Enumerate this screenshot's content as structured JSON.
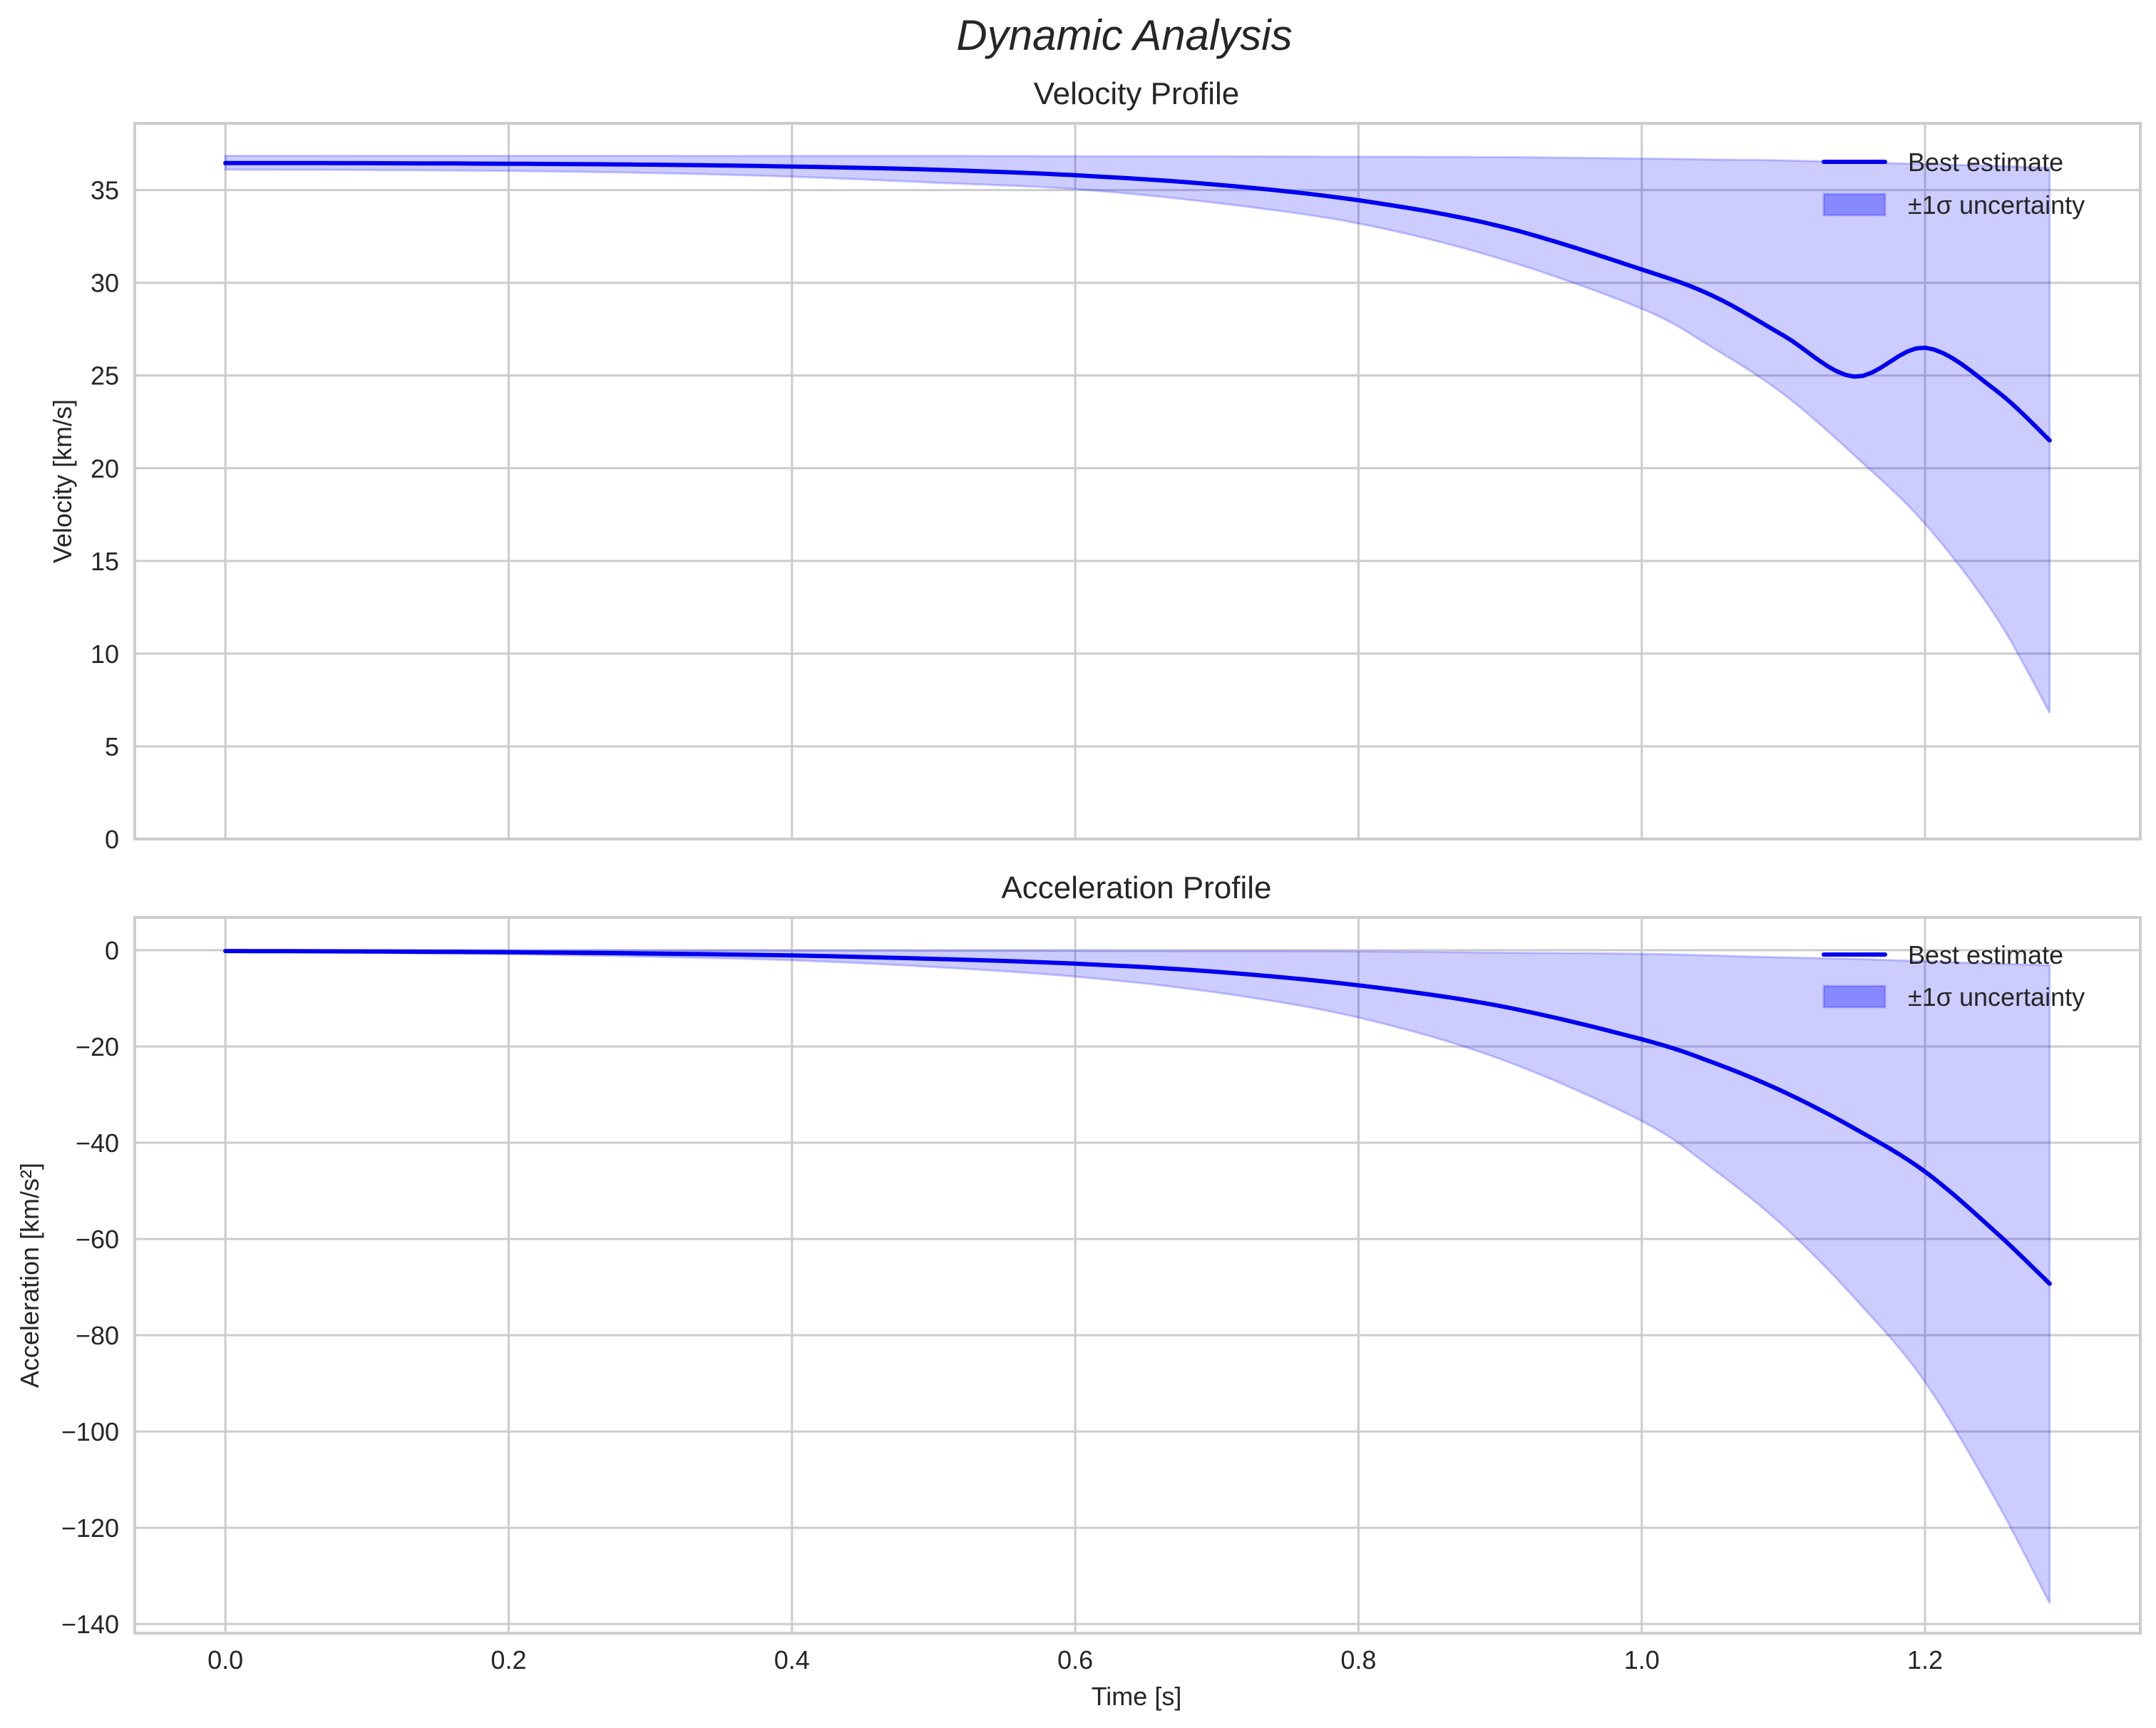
{
  "figure": {
    "suptitle": "Dynamic Analysis",
    "xlabel": "Time [s]"
  },
  "colors": {
    "line": "#0000ee",
    "band": "#0000ff",
    "band_alpha": 0.2,
    "grid": "#cccccc",
    "spine": "#cccccc",
    "text": "#262626"
  },
  "legend": {
    "line_label": "Best estimate",
    "band_label": "±1σ uncertainty"
  },
  "chart_data": [
    {
      "type": "line",
      "title": "Velocity Profile",
      "xlabel": "",
      "ylabel": "Velocity [km/s]",
      "xlim": [
        -0.064,
        1.352
      ],
      "ylim": [
        -0.0,
        38.6
      ],
      "xticks": [
        0.0,
        0.2,
        0.4,
        0.6,
        0.8,
        1.0,
        1.2
      ],
      "xtick_labels_visible": false,
      "yticks": [
        0,
        5,
        10,
        15,
        20,
        25,
        30,
        35
      ],
      "ytick_labels": [
        "0",
        "5",
        "10",
        "15",
        "20",
        "25",
        "30",
        "35"
      ],
      "grid": true,
      "legend_position": "upper right",
      "x": [
        0.0,
        0.1,
        0.2,
        0.3,
        0.4,
        0.5,
        0.6,
        0.7,
        0.8,
        0.9,
        1.0,
        1.05,
        1.1,
        1.15,
        1.2,
        1.25,
        1.288
      ],
      "series": [
        {
          "name": "Best estimate",
          "values": [
            36.46,
            36.45,
            36.42,
            36.37,
            36.27,
            36.1,
            35.8,
            35.29,
            34.45,
            33.05,
            30.72,
            29.3,
            27.16,
            24.94,
            26.5,
            24.2,
            21.5
          ]
        },
        {
          "name": "±1σ lower",
          "values": [
            36.1,
            36.08,
            36.03,
            35.92,
            35.72,
            35.4,
            35.05,
            34.3,
            33.2,
            31.3,
            28.6,
            26.5,
            24.0,
            20.7,
            17.0,
            12.0,
            6.8
          ]
        },
        {
          "name": "±1σ upper",
          "values": [
            36.85,
            36.85,
            36.85,
            36.85,
            36.84,
            36.84,
            36.83,
            36.82,
            36.8,
            36.78,
            36.7,
            36.65,
            36.6,
            36.5,
            36.4,
            36.3,
            36.2
          ]
        }
      ]
    },
    {
      "type": "line",
      "title": "Acceleration Profile",
      "xlabel": "Time [s]",
      "ylabel": "Acceleration [km/s²]",
      "xlim": [
        -0.064,
        1.352
      ],
      "ylim": [
        -141.9,
        6.8
      ],
      "xticks": [
        0.0,
        0.2,
        0.4,
        0.6,
        0.8,
        1.0,
        1.2
      ],
      "xtick_labels": [
        "0.0",
        "0.2",
        "0.4",
        "0.6",
        "0.8",
        "1.0",
        "1.2"
      ],
      "yticks": [
        0,
        -20,
        -40,
        -60,
        -80,
        -100,
        -120,
        -140
      ],
      "ytick_labels": [
        "0",
        "−20",
        "−40",
        "−60",
        "−80",
        "−100",
        "−120",
        "−140"
      ],
      "grid": true,
      "legend_position": "upper right",
      "x": [
        0.0,
        0.1,
        0.2,
        0.3,
        0.4,
        0.5,
        0.6,
        0.7,
        0.8,
        0.9,
        1.0,
        1.05,
        1.1,
        1.15,
        1.2,
        1.25,
        1.288
      ],
      "series": [
        {
          "name": "Best estimate",
          "values": [
            -0.17,
            -0.27,
            -0.43,
            -0.69,
            -1.1,
            -1.8,
            -2.8,
            -4.5,
            -7.3,
            -11.6,
            -18.5,
            -23.3,
            -29.4,
            -37.0,
            -46.0,
            -58.6,
            -69.3
          ]
        },
        {
          "name": "±1σ lower",
          "values": [
            -0.33,
            -0.53,
            -0.84,
            -1.35,
            -2.1,
            -3.5,
            -5.5,
            -8.8,
            -14.0,
            -22.6,
            -35.5,
            -45.4,
            -57.3,
            -72.2,
            -89.7,
            -114.3,
            -135.7
          ]
        },
        {
          "name": "±1σ upper",
          "values": [
            0.0,
            -0.01,
            -0.02,
            -0.04,
            -0.07,
            -0.1,
            -0.15,
            -0.2,
            -0.25,
            -0.5,
            -0.75,
            -1.1,
            -1.5,
            -1.8,
            -2.3,
            -2.8,
            -3.1
          ]
        }
      ]
    }
  ]
}
